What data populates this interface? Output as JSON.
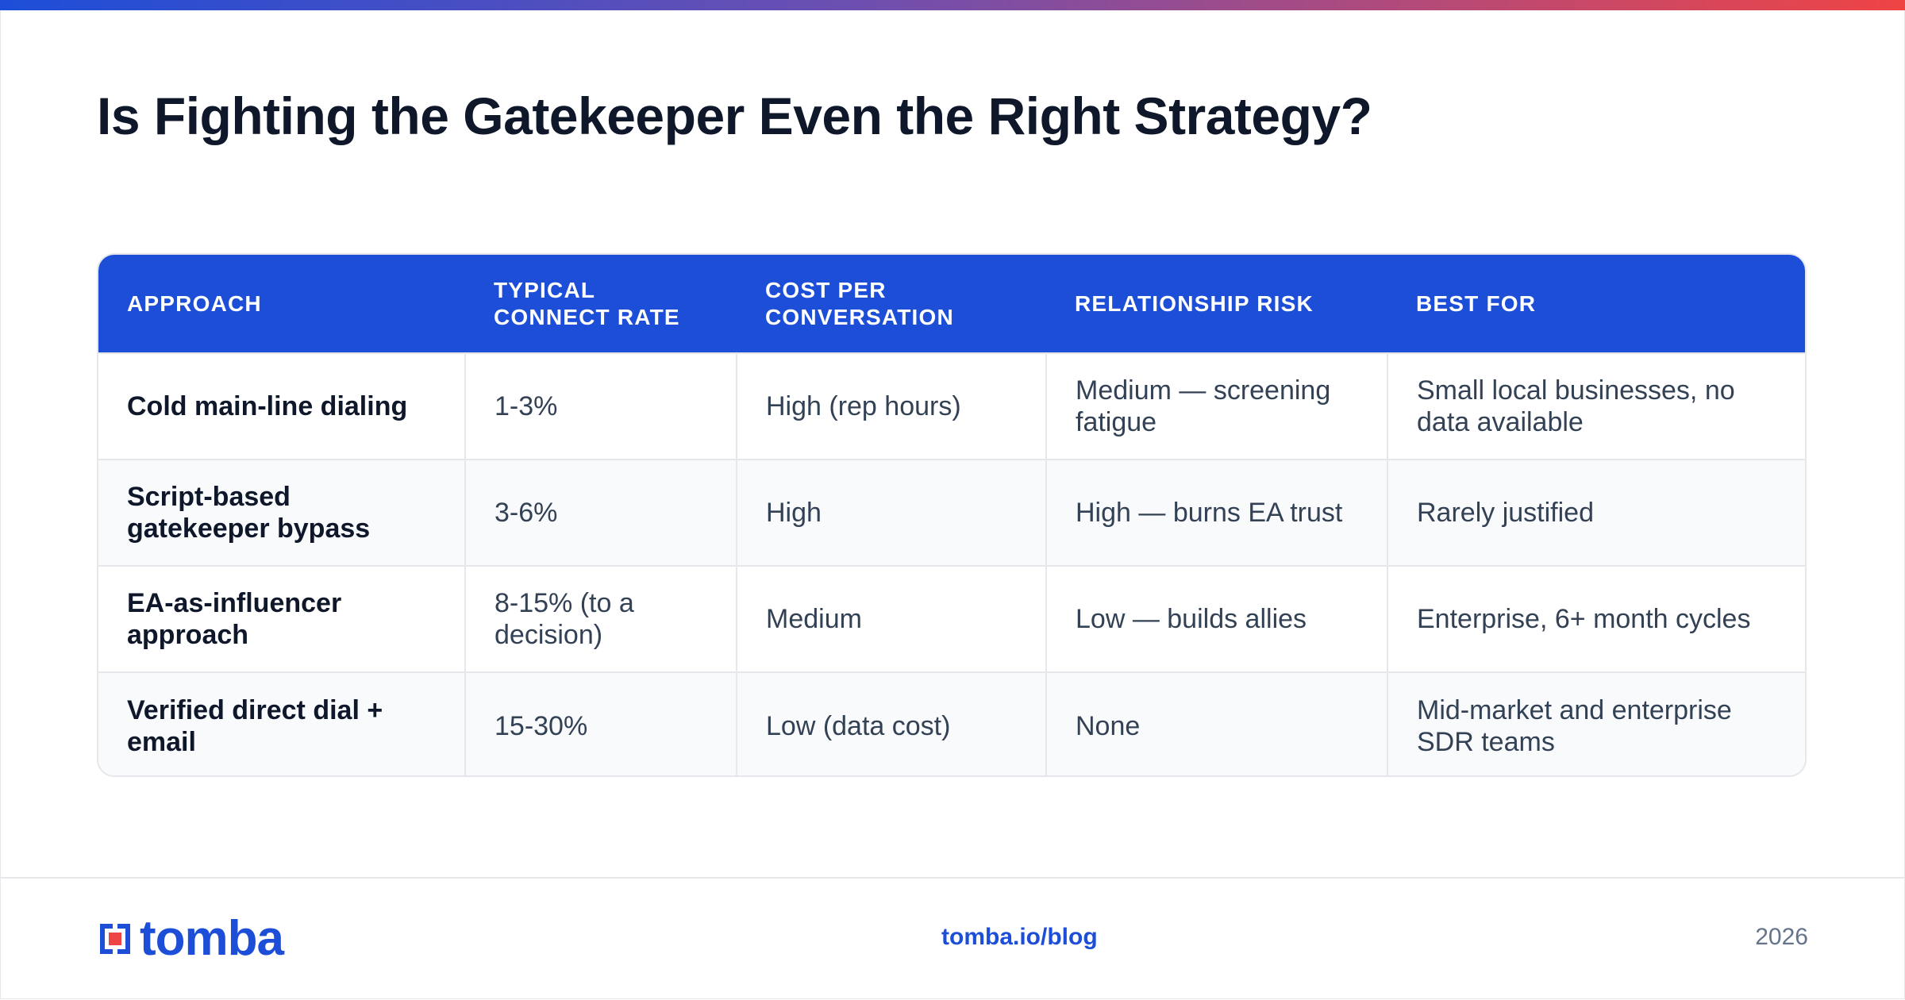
{
  "page": {
    "title": "Is Fighting the Gatekeeper Even the Right Strategy?"
  },
  "table": {
    "headers": [
      "APPROACH",
      "TYPICAL CONNECT RATE",
      "COST PER CONVERSATION",
      "RELATIONSHIP RISK",
      "BEST FOR"
    ],
    "rows": [
      [
        "Cold main-line dialing",
        "1-3%",
        "High (rep hours)",
        "Medium — screening fatigue",
        "Small local businesses, no data available"
      ],
      [
        "Script-based gatekeeper bypass",
        "3-6%",
        "High",
        "High — burns EA trust",
        "Rarely justified"
      ],
      [
        "EA-as-influencer approach",
        "8-15% (to a decision)",
        "Medium",
        "Low — builds allies",
        "Enterprise, 6+ month cycles"
      ],
      [
        "Verified direct dial + email",
        "15-30%",
        "Low (data cost)",
        "None",
        "Mid-market and enterprise SDR teams"
      ]
    ]
  },
  "footer": {
    "brand": "tomba",
    "link": "tomba.io/blog",
    "year": "2026"
  },
  "colors": {
    "accent": "#1d4ed8",
    "logo_red": "#ef4444"
  },
  "icons": {
    "logo": "tomba-logo-icon"
  }
}
